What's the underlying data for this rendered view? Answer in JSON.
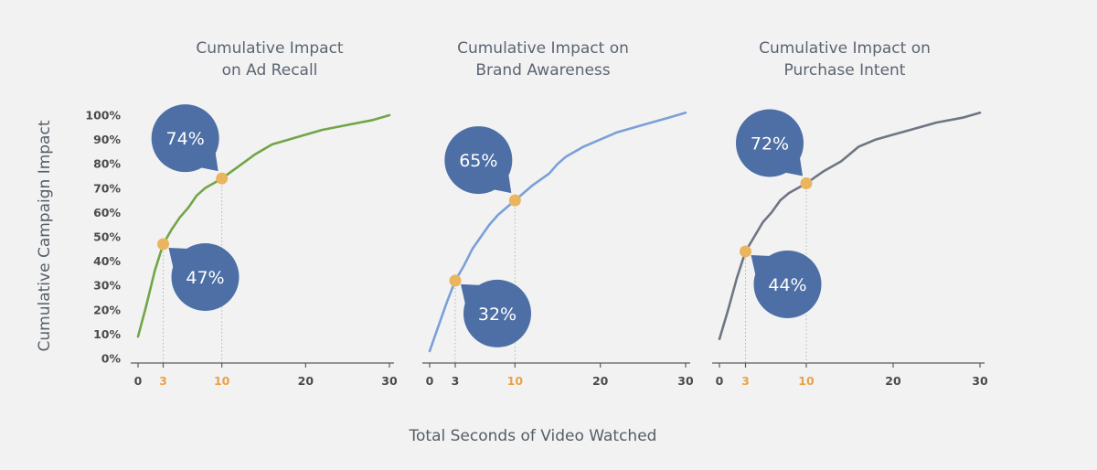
{
  "colors": {
    "background": "#f2f2f2",
    "axis": "#5c5c5c",
    "bubble": "#4d6fa5",
    "marker": "#ebb45e",
    "highlight_tick": "#e8a24a"
  },
  "y_axis_title": "Cumulative Campaign Impact",
  "x_axis_title": "Total Seconds of Video Watched",
  "chart_data": [
    {
      "type": "line",
      "title_lines": [
        "Cumulative Impact",
        "on Ad Recall"
      ],
      "color": "#72a548",
      "xlim": [
        0,
        30
      ],
      "ylim": [
        0,
        100
      ],
      "yticks": [
        "0%",
        "10%",
        "20%",
        "30%",
        "40%",
        "50%",
        "60%",
        "70%",
        "80%",
        "90%",
        "100%"
      ],
      "xticks": [
        {
          "value": 0,
          "label": "0"
        },
        {
          "value": 3,
          "label": "3",
          "highlight": true
        },
        {
          "value": 10,
          "label": "10",
          "highlight": true
        },
        {
          "value": 20,
          "label": "20"
        },
        {
          "value": 30,
          "label": "30"
        }
      ],
      "x": [
        0,
        1,
        2,
        3,
        4,
        5,
        6,
        7,
        8,
        10,
        12,
        14,
        15,
        16,
        18,
        20,
        22,
        25,
        28,
        30
      ],
      "y": [
        9,
        22,
        36,
        47,
        53,
        58,
        62,
        67,
        70,
        74,
        79,
        84,
        86,
        88,
        90,
        92,
        94,
        96,
        98,
        100
      ],
      "annotations": [
        {
          "x": 3,
          "y": 47,
          "label": "47%",
          "side": "below"
        },
        {
          "x": 10,
          "y": 74,
          "label": "74%",
          "side": "above"
        }
      ]
    },
    {
      "type": "line",
      "title_lines": [
        "Cumulative Impact on",
        "Brand Awareness"
      ],
      "color": "#7b9fd8",
      "xlim": [
        0,
        30
      ],
      "ylim": [
        0,
        100
      ],
      "yticks": [],
      "xticks": [
        {
          "value": 0,
          "label": "0"
        },
        {
          "value": 3,
          "label": "3"
        },
        {
          "value": 10,
          "label": "10",
          "highlight": true
        },
        {
          "value": 20,
          "label": "20"
        },
        {
          "value": 30,
          "label": "30"
        }
      ],
      "x": [
        0,
        1,
        2,
        3,
        4,
        5,
        6,
        7,
        8,
        10,
        12,
        14,
        15,
        16,
        18,
        20,
        22,
        25,
        28,
        30
      ],
      "y": [
        3,
        13,
        23,
        32,
        38,
        45,
        50,
        55,
        59,
        65,
        71,
        76,
        80,
        83,
        87,
        90,
        93,
        96,
        99,
        101
      ],
      "annotations": [
        {
          "x": 3,
          "y": 32,
          "label": "32%",
          "side": "below"
        },
        {
          "x": 10,
          "y": 65,
          "label": "65%",
          "side": "above"
        }
      ]
    },
    {
      "type": "line",
      "title_lines": [
        "Cumulative Impact on",
        "Purchase Intent"
      ],
      "color": "#6e7683",
      "xlim": [
        0,
        30
      ],
      "ylim": [
        0,
        100
      ],
      "yticks": [],
      "xticks": [
        {
          "value": 0,
          "label": "0"
        },
        {
          "value": 3,
          "label": "3",
          "highlight": true
        },
        {
          "value": 10,
          "label": "10",
          "highlight": true
        },
        {
          "value": 20,
          "label": "20"
        },
        {
          "value": 30,
          "label": "30"
        }
      ],
      "x": [
        0,
        1,
        2,
        3,
        4,
        5,
        6,
        7,
        8,
        10,
        12,
        14,
        15,
        16,
        18,
        20,
        22,
        25,
        28,
        30
      ],
      "y": [
        8,
        20,
        33,
        44,
        50,
        56,
        60,
        65,
        68,
        72,
        77,
        81,
        84,
        87,
        90,
        92,
        94,
        97,
        99,
        101
      ],
      "annotations": [
        {
          "x": 3,
          "y": 44,
          "label": "44%",
          "side": "below"
        },
        {
          "x": 10,
          "y": 72,
          "label": "72%",
          "side": "above"
        }
      ]
    }
  ]
}
